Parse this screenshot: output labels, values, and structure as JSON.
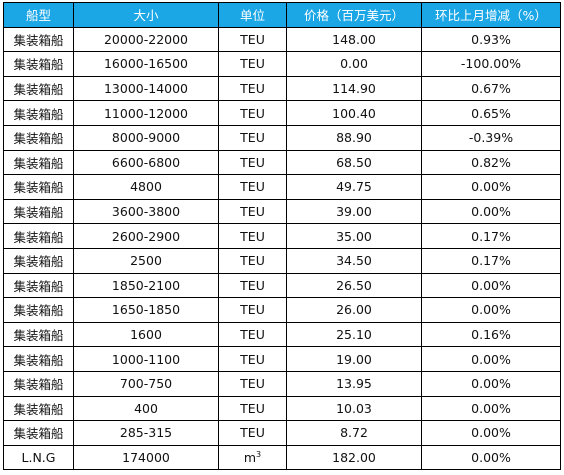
{
  "table": {
    "headers": [
      "船型",
      "大小",
      "单位",
      "价格（百万美元）",
      "环比上月增减（%）"
    ],
    "rows": [
      [
        "集装箱船",
        "20000-22000",
        "TEU",
        "148.00",
        "0.93%"
      ],
      [
        "集装箱船",
        "16000-16500",
        "TEU",
        "0.00",
        "-100.00%"
      ],
      [
        "集装箱船",
        "13000-14000",
        "TEU",
        "114.90",
        "0.67%"
      ],
      [
        "集装箱船",
        "11000-12000",
        "TEU",
        "100.40",
        "0.65%"
      ],
      [
        "集装箱船",
        "8000-9000",
        "TEU",
        "88.90",
        "-0.39%"
      ],
      [
        "集装箱船",
        "6600-6800",
        "TEU",
        "68.50",
        "0.82%"
      ],
      [
        "集装箱船",
        "4800",
        "TEU",
        "49.75",
        "0.00%"
      ],
      [
        "集装箱船",
        "3600-3800",
        "TEU",
        "39.00",
        "0.00%"
      ],
      [
        "集装箱船",
        "2600-2900",
        "TEU",
        "35.00",
        "0.17%"
      ],
      [
        "集装箱船",
        "2500",
        "TEU",
        "34.50",
        "0.17%"
      ],
      [
        "集装箱船",
        "1850-2100",
        "TEU",
        "26.50",
        "0.00%"
      ],
      [
        "集装箱船",
        "1650-1850",
        "TEU",
        "26.00",
        "0.00%"
      ],
      [
        "集装箱船",
        "1600",
        "TEU",
        "25.10",
        "0.16%"
      ],
      [
        "集装箱船",
        "1000-1100",
        "TEU",
        "19.00",
        "0.00%"
      ],
      [
        "集装箱船",
        "700-750",
        "TEU",
        "13.95",
        "0.00%"
      ],
      [
        "集装箱船",
        "400",
        "TEU",
        "10.03",
        "0.00%"
      ],
      [
        "集装箱船",
        "285-315",
        "TEU",
        "8.72",
        "0.00%"
      ]
    ],
    "last_row": {
      "type": "L.N.G",
      "size": "174000",
      "unit_base": "m",
      "unit_exp": "3",
      "price": "182.00",
      "change": "0.00%"
    }
  },
  "colors": {
    "header_bg": "#1ba6e6",
    "header_text": "#ffffff",
    "border": "#000000"
  }
}
